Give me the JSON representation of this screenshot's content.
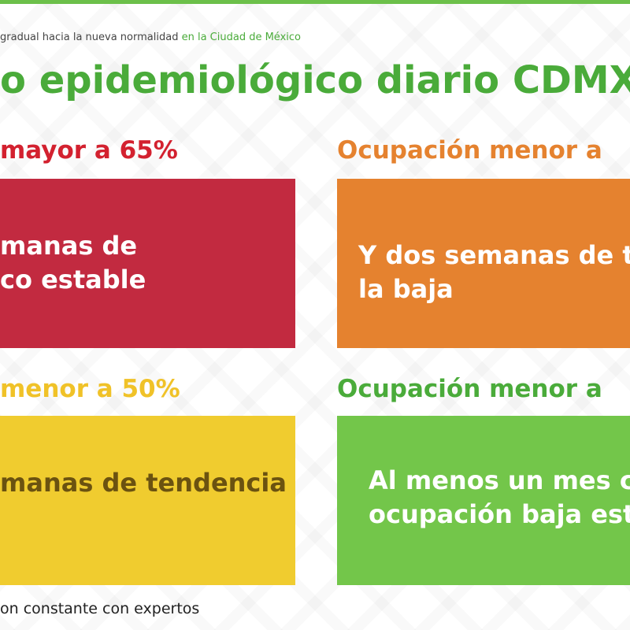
{
  "header": {
    "subtitle_main": "gradual hacia la nueva normalidad",
    "subtitle_highlight": "en la Ciudad de México",
    "title": "o epidemiológico diario CDMX*"
  },
  "panels": [
    {
      "heading": "mayor a 65%",
      "body_line1": "manas de",
      "body_line2": "co estable",
      "color": "#c22a40",
      "heading_color": "#d3212f",
      "text_color": "#ffffff"
    },
    {
      "heading": "Ocupación menor a",
      "body_line1": "Y dos semanas de te",
      "body_line2": "la baja",
      "color": "#e5822f",
      "heading_color": "#e5822f",
      "text_color": "#ffffff"
    },
    {
      "heading": "menor a 50%",
      "body_line1": "manas de tendencia",
      "body_line2": "",
      "color": "#f0cc2f",
      "heading_color": "#f0c228",
      "text_color": "#6b5210"
    },
    {
      "heading": "Ocupación menor a",
      "body_line1": "Al menos un mes co",
      "body_line2": "ocupación baja esta",
      "color": "#73c64a",
      "heading_color": "#4aab3a",
      "text_color": "#ffffff"
    }
  ],
  "footer": {
    "note": "on constante con expertos"
  },
  "colors": {
    "accent_green": "#6cc04a",
    "title_green": "#4aab3a"
  }
}
